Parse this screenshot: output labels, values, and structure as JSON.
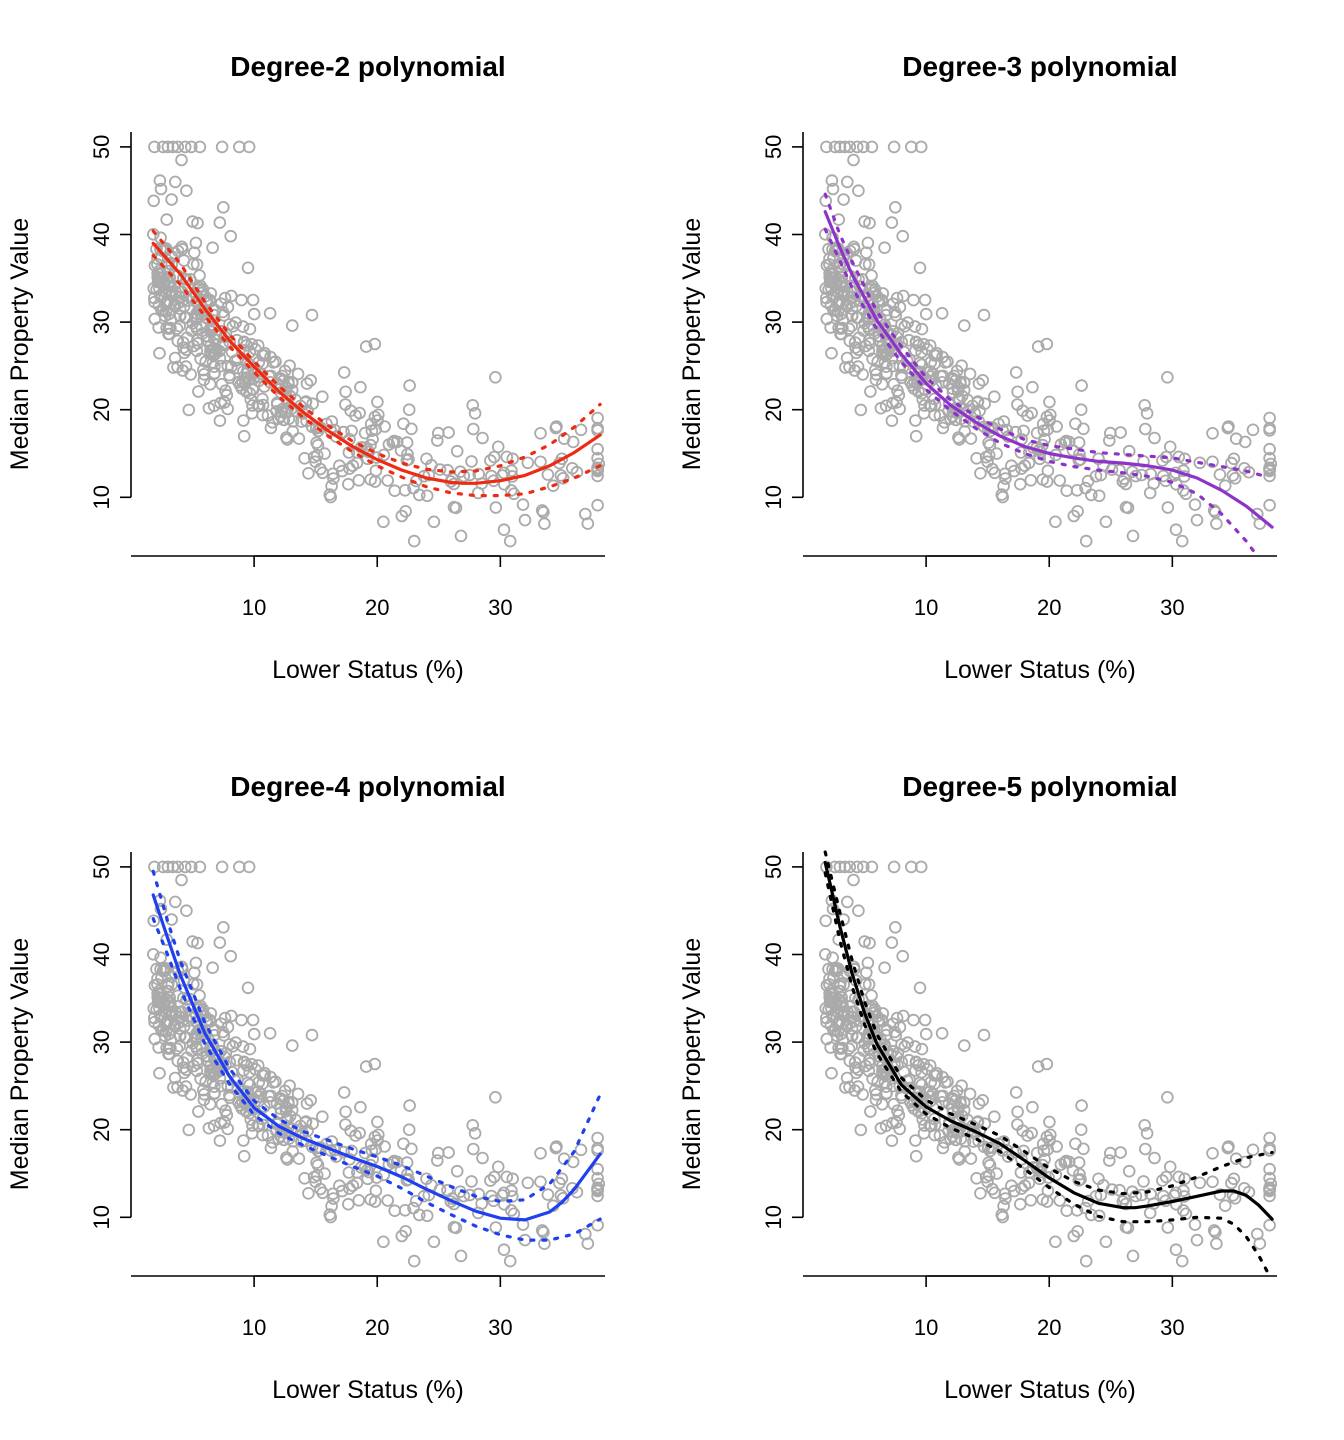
{
  "colors": {
    "points": "#aaaaaa",
    "deg2": "#ee2a12",
    "deg3": "#8e33c9",
    "deg4": "#1f3ff0",
    "deg5": "#000000"
  },
  "chart_data": [
    {
      "type": "scatter",
      "title": "Degree-2 polynomial",
      "xlabel": "Lower Status (%)",
      "ylabel": "Median Property Value",
      "xticks": [
        10,
        20,
        30
      ],
      "yticks": [
        10,
        20,
        30,
        40,
        50
      ],
      "xlim": [
        0,
        38.5
      ],
      "ylim": [
        3.3,
        51.7
      ],
      "grid": false,
      "line_color_key": "deg2",
      "fit": {
        "x": [
          1.8,
          4,
          6,
          8,
          10,
          12,
          14,
          16,
          18,
          20,
          22,
          24,
          26,
          27,
          28,
          30,
          32,
          34,
          36,
          38.1
        ],
        "y": [
          39,
          35.5,
          31.5,
          27.9,
          24.9,
          22.1,
          19.7,
          17.6,
          15.8,
          14.3,
          13.1,
          12.2,
          11.7,
          11.6,
          11.6,
          11.9,
          12.5,
          13.6,
          15.1,
          17.1
        ]
      },
      "upper": {
        "x": [
          1.8,
          4,
          6,
          8,
          10,
          12,
          14,
          16,
          18,
          20,
          22,
          24,
          26,
          28,
          30,
          32,
          34,
          36,
          38.1
        ],
        "y": [
          40.4,
          36.7,
          32.3,
          28.6,
          25.5,
          22.7,
          20.3,
          18.2,
          16.4,
          15,
          13.9,
          13.2,
          12.9,
          13,
          13.6,
          14.6,
          16,
          18,
          20.6
        ]
      },
      "lower": {
        "x": [
          1.8,
          4,
          6,
          8,
          10,
          12,
          14,
          16,
          18,
          20,
          22,
          24,
          26,
          28,
          30,
          32,
          34,
          36,
          38.1
        ],
        "y": [
          37.6,
          34.3,
          30.7,
          27.2,
          24.3,
          21.5,
          19.1,
          17,
          15.2,
          13.6,
          12.3,
          11.2,
          10.5,
          10.2,
          10.2,
          10.4,
          11.2,
          12.2,
          13.6
        ]
      }
    },
    {
      "type": "scatter",
      "title": "Degree-3 polynomial",
      "xlabel": "Lower Status (%)",
      "ylabel": "Median Property Value",
      "xticks": [
        10,
        20,
        30
      ],
      "yticks": [
        10,
        20,
        30,
        40,
        50
      ],
      "xlim": [
        0,
        38.5
      ],
      "ylim": [
        3.3,
        51.7
      ],
      "grid": false,
      "line_color_key": "deg3",
      "fit": {
        "x": [
          1.8,
          3,
          4,
          6,
          8,
          10,
          12,
          14,
          16,
          18,
          20,
          22,
          24,
          26,
          28,
          30,
          32,
          34,
          36,
          38.1
        ],
        "y": [
          42.6,
          38.5,
          35.4,
          30.2,
          26.3,
          23,
          20.5,
          18.6,
          17,
          15.8,
          15,
          14.5,
          14.1,
          13.9,
          13.6,
          13.1,
          12.2,
          10.8,
          9,
          6.6
        ]
      },
      "upper": {
        "x": [
          1.8,
          3,
          4,
          6,
          8,
          10,
          12,
          14,
          16,
          18,
          20,
          22,
          24,
          26,
          28,
          30,
          32,
          34,
          36,
          37.8
        ],
        "y": [
          44.6,
          40,
          36.9,
          31.2,
          27.2,
          23.7,
          21.1,
          19.3,
          17.8,
          16.6,
          15.9,
          15.5,
          15.1,
          14.9,
          14.7,
          14.5,
          14,
          13.5,
          13,
          12.3
        ]
      },
      "lower": {
        "x": [
          1.8,
          3,
          4,
          6,
          8,
          10,
          12,
          14,
          16,
          18,
          20,
          22,
          24,
          26,
          28,
          30,
          32,
          34,
          36,
          36.9
        ],
        "y": [
          40.6,
          37,
          33.9,
          29.2,
          25.4,
          22.3,
          19.9,
          17.9,
          16.2,
          15,
          14.1,
          13.5,
          13.1,
          12.8,
          12.4,
          11.7,
          10.4,
          8.1,
          5,
          3.3
        ]
      }
    },
    {
      "type": "scatter",
      "title": "Degree-4 polynomial",
      "xlabel": "Lower Status (%)",
      "ylabel": "Median Property Value",
      "xticks": [
        10,
        20,
        30
      ],
      "yticks": [
        10,
        20,
        30,
        40,
        50
      ],
      "xlim": [
        0,
        38.5
      ],
      "ylim": [
        3.3,
        51.7
      ],
      "grid": false,
      "line_color_key": "deg4",
      "fit": {
        "x": [
          1.8,
          3,
          4,
          6,
          8,
          10,
          12,
          14,
          16,
          18,
          20,
          22,
          24,
          26,
          28,
          30,
          32,
          34,
          35,
          36,
          38.1
        ],
        "y": [
          46.8,
          41.8,
          37.7,
          31,
          26.1,
          22.5,
          20.4,
          19,
          17.9,
          16.8,
          15.8,
          14.6,
          13.2,
          11.9,
          10.7,
          9.9,
          9.7,
          10.6,
          11.7,
          13.2,
          17.2
        ]
      },
      "upper": {
        "x": [
          1.8,
          3,
          4,
          6,
          8,
          10,
          12,
          14,
          16,
          18,
          20,
          22,
          24,
          26,
          28,
          30,
          32,
          34,
          36,
          38.1
        ],
        "y": [
          49.5,
          43.7,
          39.3,
          32.2,
          27,
          23.3,
          21.2,
          19.8,
          18.8,
          17.8,
          16.9,
          15.9,
          14.7,
          13.5,
          12.4,
          11.8,
          12,
          13.8,
          17.5,
          24
        ]
      },
      "lower": {
        "x": [
          1.8,
          3,
          4,
          6,
          8,
          10,
          12,
          14,
          16,
          18,
          20,
          22,
          24,
          26,
          28,
          30,
          32,
          34,
          36,
          38.1
        ],
        "y": [
          44.1,
          39.9,
          36.1,
          29.8,
          25.2,
          21.7,
          19.6,
          18.2,
          17,
          15.8,
          14.7,
          13.3,
          11.7,
          10.3,
          9,
          8,
          7.4,
          7.4,
          8.1,
          9.8
        ]
      }
    },
    {
      "type": "scatter",
      "title": "Degree-5 polynomial",
      "xlabel": "Lower Status (%)",
      "ylabel": "Median Property Value",
      "xticks": [
        10,
        20,
        30
      ],
      "yticks": [
        10,
        20,
        30,
        40,
        50
      ],
      "xlim": [
        0,
        38.5
      ],
      "ylim": [
        3.3,
        51.7
      ],
      "grid": false,
      "line_color_key": "deg5",
      "fit": {
        "x": [
          1.8,
          3,
          4,
          5,
          6,
          8,
          10,
          12,
          14,
          16,
          18,
          20,
          22,
          24,
          26,
          27,
          28,
          30,
          32,
          34,
          35,
          36,
          37,
          38.1
        ],
        "y": [
          50.5,
          43.2,
          37.8,
          33.3,
          29.8,
          25.1,
          22.6,
          21,
          19.8,
          18.4,
          16.5,
          14.5,
          12.8,
          11.6,
          11.1,
          11.1,
          11.3,
          11.8,
          12.4,
          13,
          13,
          12.5,
          11.4,
          9.8
        ]
      },
      "upper": {
        "x": [
          1.8,
          3,
          4,
          5,
          6,
          8,
          10,
          12,
          14,
          16,
          18,
          20,
          22,
          24,
          26,
          28,
          30,
          32,
          34,
          36,
          38.1
        ],
        "y": [
          51.7,
          44.8,
          39.3,
          34.6,
          30.9,
          25.9,
          23.4,
          21.8,
          20.6,
          19.3,
          17.5,
          15.6,
          14.1,
          13.1,
          12.7,
          12.9,
          13.6,
          14.6,
          15.8,
          16.8,
          17.4
        ]
      },
      "lower": {
        "x": [
          1.8,
          3,
          4,
          5,
          6,
          8,
          10,
          12,
          14,
          16,
          18,
          20,
          22,
          24,
          26,
          28,
          30,
          32,
          34,
          35,
          36,
          37,
          37.9
        ],
        "y": [
          49.3,
          41.6,
          36.3,
          32,
          28.7,
          24.3,
          21.8,
          20.2,
          19,
          17.5,
          15.5,
          13.4,
          11.5,
          10.1,
          9.5,
          9.5,
          9.7,
          10,
          9.9,
          9.2,
          7.8,
          5.7,
          3.3
        ]
      }
    }
  ]
}
